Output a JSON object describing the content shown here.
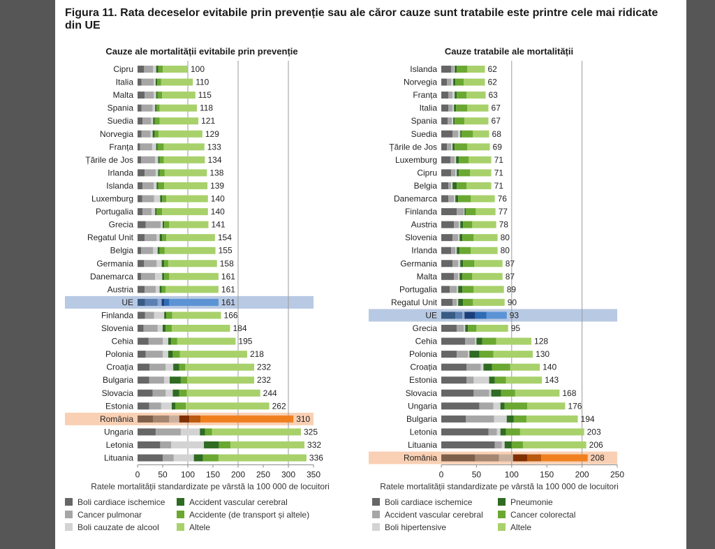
{
  "figure_title": "Figura 11. Rata deceselor evitabile prin prevenție sau ale căror cauze sunt tratabile este printre cele mai ridicate din UE",
  "chart_data": [
    {
      "type": "bar",
      "orientation": "horizontal",
      "stacked": true,
      "title": "Cauze ale mortalității evitabile prin prevenție",
      "xlabel": "Ratele mortalității standardizate pe vârstă la 100 000 de locuitori",
      "xlim": [
        0,
        350
      ],
      "xticks": [
        0,
        50,
        100,
        150,
        200,
        250,
        300,
        350
      ],
      "gridlines": [
        100,
        200,
        300
      ],
      "legend_position": "bottom",
      "highlight": {
        "UE": "#b8c9e3",
        "România": "#f9d0b4"
      },
      "series_names": [
        "Boli cardiace ischemice",
        "Cancer pulmonar",
        "Boli cauzate de alcool",
        "Accident vascular cerebral",
        "Accidente (de transport și altele)",
        "Altele"
      ],
      "colors": [
        "#666666",
        "#a6a6a6",
        "#d3d3d3",
        "#2f6b22",
        "#6aa832",
        "#a8d16b"
      ],
      "highlight_colors": {
        "UE": [
          "#385a85",
          "#5b7fb0",
          "#8ea9d2",
          "#1d3f79",
          "#2f6cb5",
          "#5b93d5"
        ],
        "România": [
          "#7e604a",
          "#a38570",
          "#c9b09e",
          "#802f00",
          "#b95a10",
          "#f0801f"
        ]
      },
      "categories": [
        "Cipru",
        "Italia",
        "Malta",
        "Spania",
        "Suedia",
        "Norvegia",
        "Franța",
        "Țările de Jos",
        "Irlanda",
        "Islanda",
        "Luxemburg",
        "Portugalia",
        "Grecia",
        "Regatul Unit",
        "Belgia",
        "Germania",
        "Danemarca",
        "Austria",
        "UE",
        "Finlanda",
        "Slovenia",
        "Cehia",
        "Polonia",
        "Croația",
        "Bulgaria",
        "Slovacia",
        "Estonia",
        "România",
        "Ungaria",
        "Letonia",
        "Lituania"
      ],
      "series": [
        [
          13,
          8,
          14,
          8,
          10,
          8,
          5,
          7,
          14,
          10,
          9,
          10,
          16,
          14,
          7,
          13,
          7,
          14,
          15,
          15,
          12,
          22,
          16,
          24,
          23,
          30,
          23,
          31,
          36,
          45,
          50
        ],
        [
          18,
          24,
          18,
          22,
          17,
          18,
          24,
          28,
          22,
          22,
          24,
          18,
          30,
          24,
          24,
          25,
          28,
          22,
          25,
          18,
          28,
          28,
          34,
          32,
          30,
          26,
          24,
          32,
          50,
          22,
          22
        ],
        [
          6,
          4,
          5,
          5,
          4,
          4,
          8,
          6,
          5,
          6,
          12,
          7,
          4,
          6,
          9,
          10,
          14,
          8,
          8,
          20,
          10,
          11,
          11,
          15,
          11,
          14,
          21,
          20,
          38,
          65,
          40
        ],
        [
          4,
          3,
          3,
          3,
          3,
          4,
          3,
          3,
          3,
          3,
          4,
          3,
          3,
          5,
          4,
          5,
          4,
          4,
          5,
          4,
          6,
          6,
          9,
          12,
          22,
          13,
          7,
          20,
          10,
          30,
          18
        ],
        [
          9,
          8,
          9,
          6,
          10,
          8,
          12,
          8,
          10,
          12,
          8,
          11,
          10,
          8,
          10,
          8,
          10,
          8,
          10,
          12,
          12,
          12,
          14,
          12,
          13,
          15,
          21,
          22,
          14,
          23,
          31
        ],
        [
          50,
          63,
          66,
          74,
          77,
          87,
          81,
          82,
          84,
          86,
          83,
          91,
          78,
          97,
          101,
          97,
          98,
          105,
          98,
          97,
          116,
          116,
          134,
          137,
          133,
          146,
          166,
          185,
          177,
          147,
          175
        ]
      ],
      "totals": [
        100,
        110,
        115,
        118,
        121,
        129,
        133,
        134,
        138,
        139,
        140,
        140,
        141,
        154,
        155,
        158,
        161,
        161,
        161,
        166,
        184,
        195,
        218,
        232,
        232,
        244,
        262,
        310,
        325,
        332,
        336
      ]
    },
    {
      "type": "bar",
      "orientation": "horizontal",
      "stacked": true,
      "title": "Cauze tratabile ale mortalității",
      "xlabel": "Ratele mortalității standardizate pe vârstă la 100 000 de locuitori",
      "xlim": [
        0,
        250
      ],
      "xticks": [
        0,
        50,
        100,
        150,
        200,
        250
      ],
      "gridlines": [
        100,
        200
      ],
      "legend_position": "bottom",
      "highlight": {
        "UE": "#b8c9e3",
        "România": "#f9d0b4"
      },
      "series_names": [
        "Boli cardiace ischemice",
        "Accident vascular cerebral",
        "Boli hipertensive",
        "Pneumonie",
        "Cancer colorectal",
        "Altele"
      ],
      "colors": [
        "#666666",
        "#a6a6a6",
        "#d3d3d3",
        "#2f6b22",
        "#6aa832",
        "#a8d16b"
      ],
      "highlight_colors": {
        "UE": [
          "#385a85",
          "#5b7fb0",
          "#8ea9d2",
          "#1d3f79",
          "#2f6cb5",
          "#5b93d5"
        ],
        "România": [
          "#7e604a",
          "#a38570",
          "#c9b09e",
          "#802f00",
          "#b95a10",
          "#f0801f"
        ]
      },
      "categories": [
        "Islanda",
        "Norvegia",
        "Franța",
        "Italia",
        "Spania",
        "Suedia",
        "Țările de Jos",
        "Luxemburg",
        "Cipru",
        "Belgia",
        "Danemarca",
        "Finlanda",
        "Austria",
        "Slovenia",
        "Irlanda",
        "Germania",
        "Malta",
        "Portugalia",
        "Regatul Unit",
        "UE",
        "Grecia",
        "Cehia",
        "Polonia",
        "Croația",
        "Estonia",
        "Slovacia",
        "Ungaria",
        "Bulgaria",
        "Letonia",
        "Lituania",
        "România"
      ],
      "series": [
        [
          14,
          8,
          10,
          10,
          9,
          16,
          8,
          13,
          14,
          10,
          10,
          22,
          18,
          16,
          14,
          16,
          18,
          12,
          16,
          20,
          22,
          34,
          22,
          36,
          36,
          46,
          54,
          35,
          67,
          76,
          48
        ],
        [
          4,
          6,
          6,
          6,
          6,
          8,
          6,
          6,
          6,
          4,
          8,
          10,
          7,
          8,
          6,
          8,
          6,
          10,
          6,
          10,
          10,
          14,
          16,
          20,
          10,
          22,
          20,
          40,
          12,
          10,
          34
        ],
        [
          1,
          3,
          3,
          2,
          2,
          3,
          2,
          2,
          2,
          2,
          2,
          1,
          2,
          2,
          2,
          3,
          2,
          2,
          2,
          3,
          2,
          2,
          2,
          4,
          22,
          3,
          10,
          18,
          5,
          4,
          20
        ],
        [
          3,
          3,
          3,
          3,
          2,
          2,
          3,
          4,
          3,
          6,
          4,
          2,
          4,
          4,
          4,
          4,
          4,
          6,
          7,
          15,
          4,
          8,
          14,
          12,
          8,
          14,
          6,
          10,
          8,
          10,
          20
        ],
        [
          15,
          12,
          14,
          16,
          14,
          16,
          18,
          14,
          16,
          14,
          18,
          14,
          13,
          16,
          16,
          16,
          14,
          16,
          14,
          16,
          12,
          20,
          20,
          26,
          16,
          20,
          32,
          18,
          20,
          16,
          20
        ],
        [
          25,
          30,
          27,
          30,
          34,
          23,
          32,
          32,
          30,
          35,
          34,
          28,
          34,
          34,
          38,
          40,
          43,
          43,
          45,
          29,
          45,
          50,
          56,
          42,
          51,
          63,
          54,
          73,
          91,
          90,
          66
        ]
      ],
      "totals": [
        62,
        62,
        63,
        67,
        67,
        68,
        69,
        71,
        71,
        71,
        76,
        77,
        78,
        80,
        80,
        87,
        87,
        89,
        90,
        93,
        95,
        128,
        130,
        140,
        143,
        168,
        176,
        194,
        203,
        206,
        208
      ]
    }
  ],
  "legend_left": [
    {
      "label": "Boli cardiace ischemice",
      "color": "#666666"
    },
    {
      "label": "Cancer pulmonar",
      "color": "#a6a6a6"
    },
    {
      "label": "Boli cauzate de alcool",
      "color": "#d3d3d3"
    },
    {
      "label": "Accident vascular cerebral",
      "color": "#2f6b22"
    },
    {
      "label": "Accidente (de transport și altele)",
      "color": "#6aa832"
    },
    {
      "label": "Altele",
      "color": "#a8d16b"
    }
  ],
  "legend_right": [
    {
      "label": "Boli cardiace ischemice",
      "color": "#666666"
    },
    {
      "label": "Accident vascular cerebral",
      "color": "#a6a6a6"
    },
    {
      "label": "Boli hipertensive",
      "color": "#d3d3d3"
    },
    {
      "label": "Pneumonie",
      "color": "#2f6b22"
    },
    {
      "label": "Cancer colorectal",
      "color": "#6aa832"
    },
    {
      "label": "Altele",
      "color": "#a8d16b"
    }
  ]
}
